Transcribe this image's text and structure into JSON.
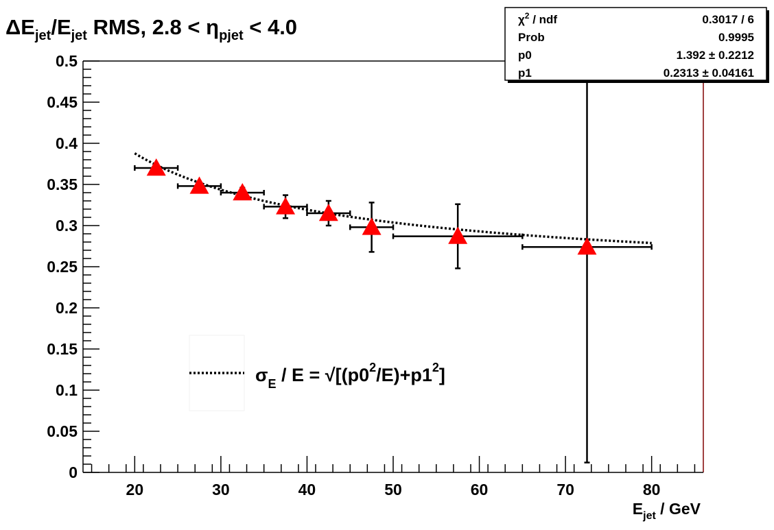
{
  "chart_data": {
    "type": "scatter",
    "title": {
      "delta": "Δ",
      "e1": "E",
      "e1_sub": "jet",
      "slash": "/",
      "e2": "E",
      "e2_sub": "jet",
      "rest": " RMS, 2.8 < ",
      "eta": "η",
      "eta_sub": "pjet",
      "tail": " < 4.0"
    },
    "xlabel": {
      "main": "E",
      "sub": "jet",
      "tail": " / GeV"
    },
    "ylabel": "",
    "xlim": [
      14,
      86
    ],
    "ylim": [
      0,
      0.5
    ],
    "x_ticks": [
      20,
      30,
      40,
      50,
      60,
      70,
      80
    ],
    "x_tick_labels": [
      "20",
      "30",
      "40",
      "50",
      "60",
      "70",
      "80"
    ],
    "y_ticks": [
      0,
      0.05,
      0.1,
      0.15,
      0.2,
      0.25,
      0.3,
      0.35,
      0.4,
      0.45,
      0.5
    ],
    "y_tick_labels": [
      "0",
      "0.05",
      "0.1",
      "0.15",
      "0.2",
      "0.25",
      "0.3",
      "0.35",
      "0.4",
      "0.45",
      "0.5"
    ],
    "grid": false,
    "series": [
      {
        "marker": "triangle",
        "color": "#ff0000",
        "points": [
          {
            "x": 22.5,
            "y": 0.37,
            "xerr": 2.5,
            "yerr": 0.004
          },
          {
            "x": 27.5,
            "y": 0.348,
            "xerr": 2.5,
            "yerr": 0.004
          },
          {
            "x": 32.5,
            "y": 0.34,
            "xerr": 2.5,
            "yerr": 0.006
          },
          {
            "x": 37.5,
            "y": 0.323,
            "xerr": 2.5,
            "yerr": 0.014
          },
          {
            "x": 42.5,
            "y": 0.315,
            "xerr": 2.5,
            "yerr": 0.015
          },
          {
            "x": 47.5,
            "y": 0.298,
            "xerr": 2.5,
            "yerr": 0.03
          },
          {
            "x": 57.5,
            "y": 0.287,
            "xerr": 7.5,
            "yerr": 0.039
          },
          {
            "x": 72.5,
            "y": 0.274,
            "xerr": 7.5,
            "yerr": 0.262
          }
        ]
      }
    ],
    "fit": {
      "p0": 1.392,
      "p1": 0.2313,
      "x_range": [
        20,
        80
      ],
      "line_style": "dotted",
      "color": "#000000"
    },
    "stats_box": {
      "placement": "top-right",
      "rows": [
        {
          "label_main": "χ",
          "label_sup": "2",
          "label_tail": " / ndf",
          "value": "0.3017 / 6"
        },
        {
          "label_main": "Prob",
          "label_sup": "",
          "label_tail": "",
          "value": "0.9995"
        },
        {
          "label_main": "p0",
          "label_sup": "",
          "label_tail": "",
          "value": "1.392 ± 0.2212"
        },
        {
          "label_main": "p1",
          "label_sup": "",
          "label_tail": "",
          "value": "0.2313 ± 0.04161"
        }
      ]
    },
    "legend": {
      "placement": "bottom-left",
      "entry": {
        "sigma": "σ",
        "sigma_sub": "E",
        "part1": " / E = √[(p0",
        "sup1": "2",
        "part2": "/E)+p1",
        "sup2": "2",
        "part3": "]"
      }
    }
  }
}
